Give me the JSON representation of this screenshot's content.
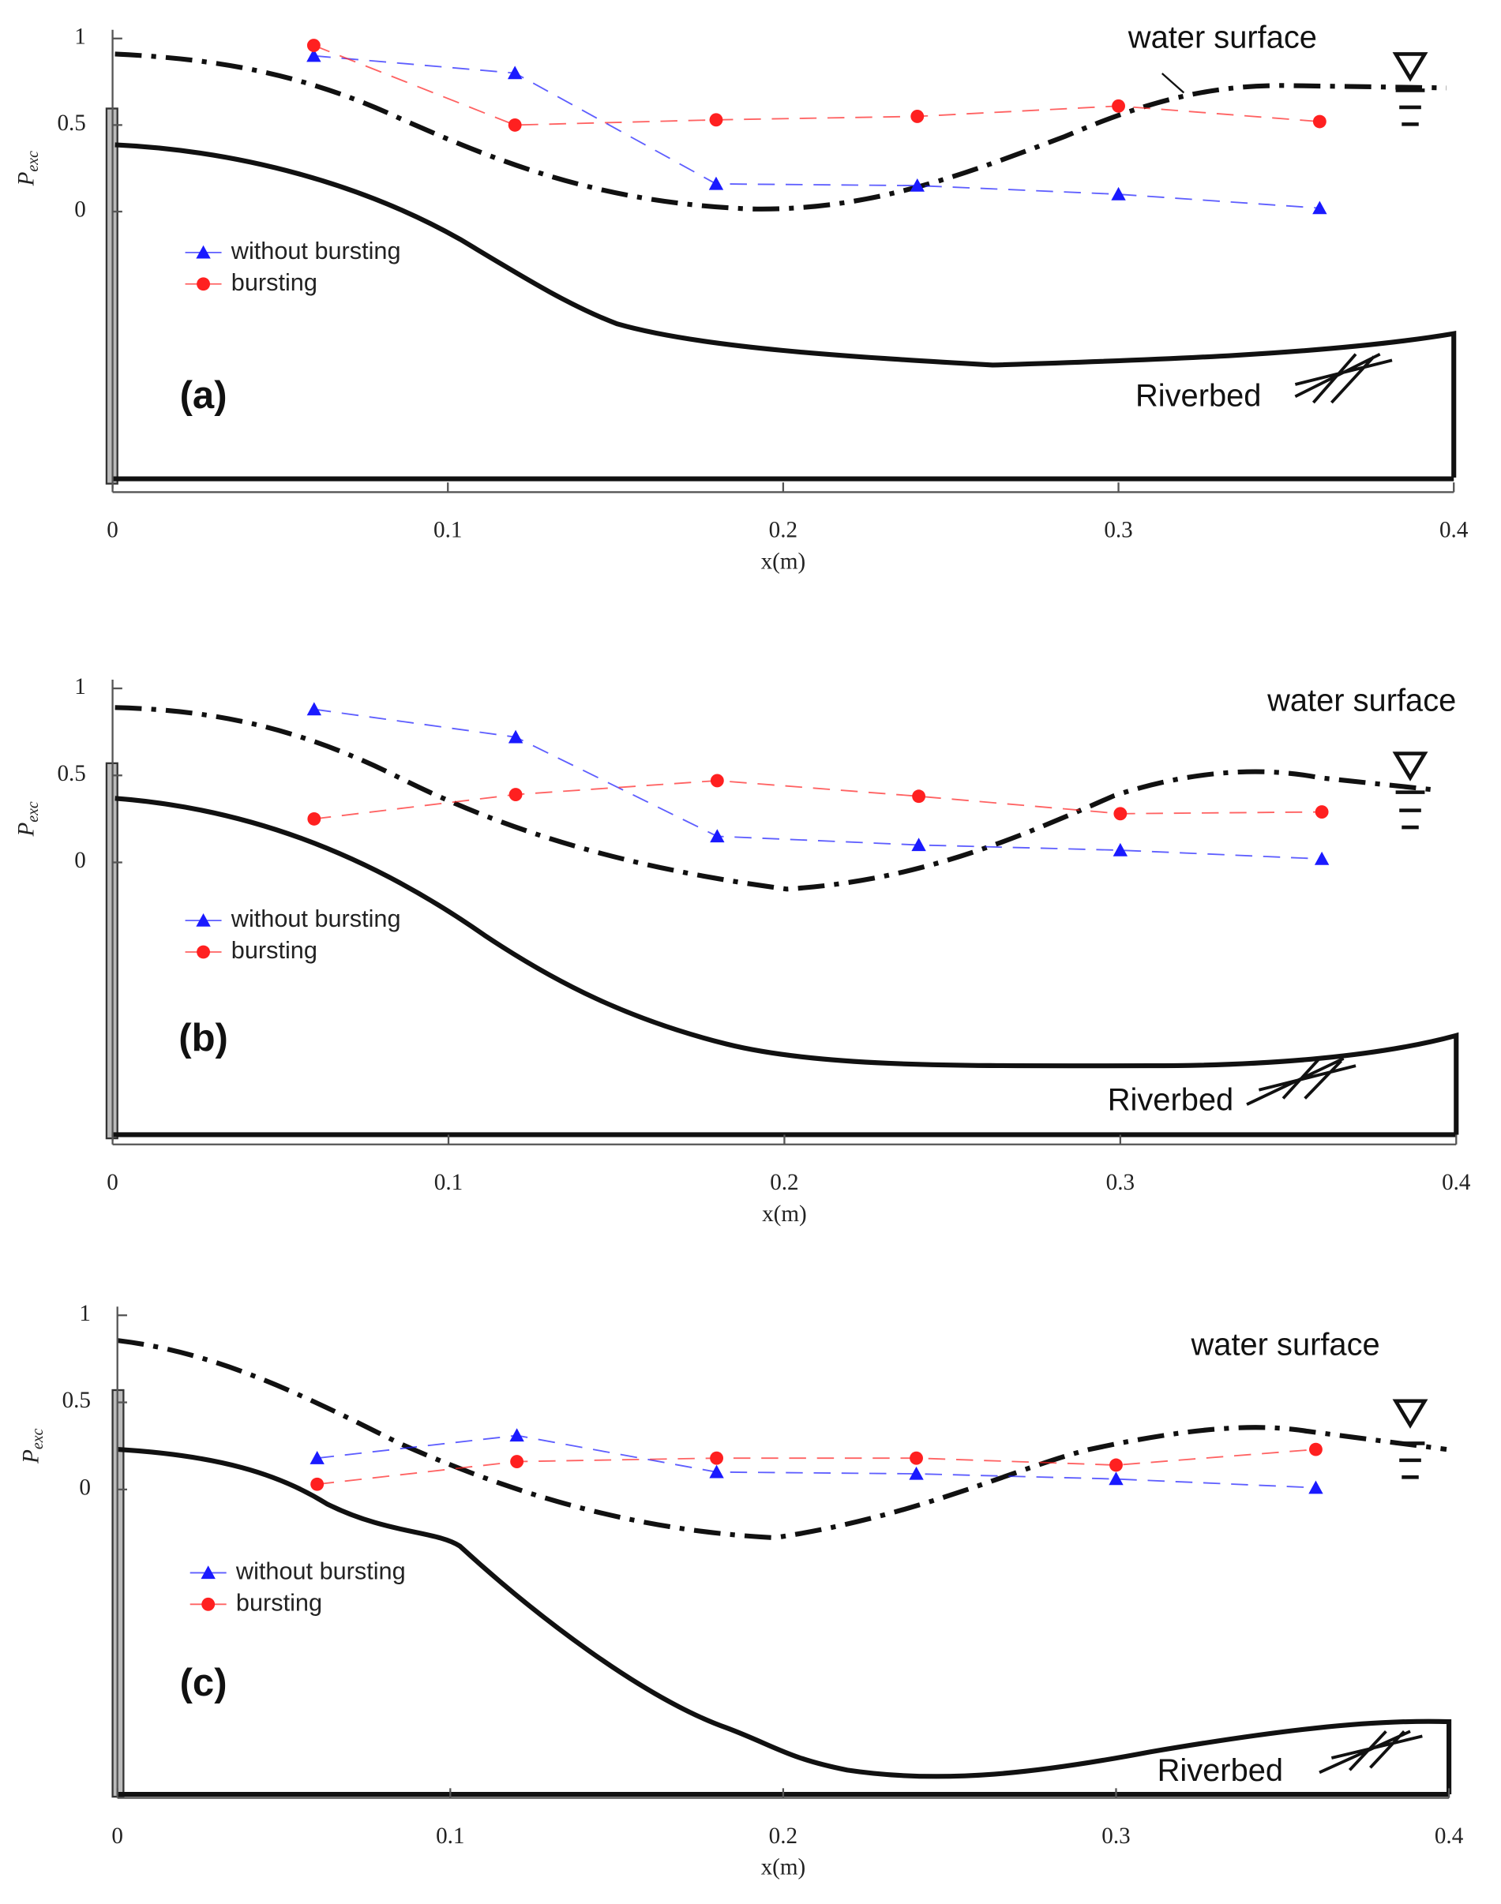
{
  "chart_data": [
    {
      "type": "line",
      "panel_label": "(a)",
      "annotations": [
        "water surface",
        "Riverbed"
      ],
      "xlabel": "x(m)",
      "ylabel": "P",
      "ylabel_subscript": "exc",
      "x": [
        0.06,
        0.12,
        0.18,
        0.24,
        0.3,
        0.36
      ],
      "xlim": [
        0,
        0.4
      ],
      "xticks": [
        0,
        0.1,
        0.2,
        0.3,
        0.4
      ],
      "ylim": [
        -1.6,
        1.05
      ],
      "yticks": [
        0,
        0.5,
        1
      ],
      "series": [
        {
          "name": "without bursting",
          "color": "#1a1aff",
          "marker": "triangle",
          "linestyle": "dashed",
          "values": [
            0.9,
            0.8,
            0.16,
            0.15,
            0.1,
            0.02
          ]
        },
        {
          "name": "bursting",
          "color": "#ff2020",
          "marker": "circle",
          "linestyle": "dashed",
          "values": [
            0.96,
            0.5,
            0.53,
            0.55,
            0.61,
            0.52
          ]
        }
      ]
    },
    {
      "type": "line",
      "panel_label": "(b)",
      "annotations": [
        "water surface",
        "Riverbed"
      ],
      "xlabel": "x(m)",
      "ylabel": "P",
      "ylabel_subscript": "exc",
      "x": [
        0.06,
        0.12,
        0.18,
        0.24,
        0.3,
        0.36
      ],
      "xlim": [
        0,
        0.4
      ],
      "xticks": [
        0,
        0.1,
        0.2,
        0.3,
        0.4
      ],
      "ylim": [
        -1.6,
        1.05
      ],
      "yticks": [
        0,
        0.5,
        1
      ],
      "series": [
        {
          "name": "without bursting",
          "color": "#1a1aff",
          "marker": "triangle",
          "linestyle": "dashed",
          "values": [
            0.88,
            0.72,
            0.15,
            0.1,
            0.07,
            0.02
          ]
        },
        {
          "name": "bursting",
          "color": "#ff2020",
          "marker": "circle",
          "linestyle": "dashed",
          "values": [
            0.25,
            0.39,
            0.47,
            0.38,
            0.28,
            0.29
          ]
        }
      ]
    },
    {
      "type": "line",
      "panel_label": "(c)",
      "annotations": [
        "water surface",
        "Riverbed"
      ],
      "xlabel": "x(m)",
      "ylabel": "P",
      "ylabel_subscript": "exc",
      "x": [
        0.06,
        0.12,
        0.18,
        0.24,
        0.3,
        0.36
      ],
      "xlim": [
        0,
        0.4
      ],
      "xticks": [
        0,
        0.1,
        0.2,
        0.3,
        0.4
      ],
      "ylim": [
        -1.75,
        1.05
      ],
      "yticks": [
        0,
        0.5,
        1
      ],
      "series": [
        {
          "name": "without bursting",
          "color": "#1a1aff",
          "marker": "triangle",
          "linestyle": "dashed",
          "values": [
            0.18,
            0.31,
            0.1,
            0.09,
            0.06,
            0.01
          ]
        },
        {
          "name": "bursting",
          "color": "#ff2020",
          "marker": "circle",
          "linestyle": "dashed",
          "values": [
            0.03,
            0.16,
            0.18,
            0.18,
            0.14,
            0.23
          ]
        }
      ]
    }
  ]
}
